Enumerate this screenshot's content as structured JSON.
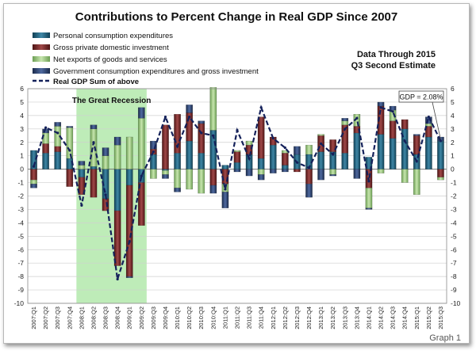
{
  "caption": "Graph 1",
  "note": {
    "line1": "Data Through 2015",
    "line2": "Q3 Second Estimate"
  },
  "gdp_label": "GDP = 2.08%",
  "recession_label": "The Great Recession",
  "colors": {
    "consumption": "#1f5f7a",
    "investment": "#7a2b2b",
    "net_exports": "#94c27a",
    "government": "#2b3f66",
    "gdp_line": "#14215a",
    "recession": "#a8e6a0"
  },
  "chart_data": {
    "type": "bar",
    "title": "Contributions to Percent Change in Real GDP Since 2007",
    "ylim": [
      -10,
      6
    ],
    "grid": true,
    "legend_position": "top-left",
    "recession_range": [
      "2008:Q1",
      "2009:Q2"
    ],
    "categories": [
      "2007:Q1",
      "2007:Q2",
      "2007:Q3",
      "2007:Q4",
      "2008:Q1",
      "2008:Q2",
      "2008:Q3",
      "2008:Q4",
      "2009:Q1",
      "2009:Q2",
      "2009:Q3",
      "2009:Q4",
      "2010:Q1",
      "2010:Q2",
      "2010:Q3",
      "2010:Q4",
      "2011:Q1",
      "2011:Q2",
      "2011:Q3",
      "2011:Q4",
      "2012:Q1",
      "2012:Q2",
      "2012:Q3",
      "2012:Q4",
      "2013:Q1",
      "2013:Q2",
      "2013:Q3",
      "2013:Q4",
      "2014:Q1",
      "2014:Q2",
      "2014:Q3",
      "2014:Q4",
      "2015:Q1",
      "2015:Q2",
      "2015:Q3"
    ],
    "yticks": [
      -10,
      -9,
      -8,
      -7,
      -6,
      -5,
      -4,
      -3,
      -2,
      -1,
      0,
      1,
      2,
      3,
      4,
      5,
      6
    ],
    "series": [
      {
        "name": "Personal consumption expenditures",
        "values": [
          1.4,
          1.2,
          1.3,
          0.8,
          -0.6,
          0.2,
          -2.2,
          -3.1,
          -1.2,
          -1.0,
          1.1,
          -0.1,
          1.2,
          2.1,
          1.2,
          2.9,
          0.3,
          0.5,
          1.1,
          0.8,
          1.8,
          0.3,
          1.1,
          1.1,
          1.3,
          1.3,
          1.2,
          2.7,
          0.9,
          2.6,
          2.3,
          3.0,
          1.1,
          2.4,
          2.1
        ]
      },
      {
        "name": "Gross private domestic investment",
        "values": [
          -0.8,
          0.7,
          0.4,
          -1.3,
          -1.3,
          -2.1,
          -0.9,
          -4.1,
          -6.8,
          -3.2,
          0.4,
          3.3,
          2.9,
          2.1,
          2.2,
          -1.2,
          -1.1,
          0.8,
          0.7,
          3.1,
          0.6,
          0.9,
          -0.2,
          -1.1,
          1.2,
          0.9,
          2.1,
          0.5,
          -1.4,
          2.1,
          1.3,
          0.7,
          1.4,
          0.8,
          -0.6
        ]
      },
      {
        "name": "Net exports of goods and services",
        "values": [
          -0.3,
          0.8,
          1.5,
          2.3,
          0.3,
          2.8,
          1.0,
          1.8,
          2.4,
          3.8,
          -0.7,
          -0.3,
          -1.4,
          -1.5,
          -1.8,
          3.2,
          -0.6,
          0.1,
          0.3,
          -0.4,
          0.0,
          0.2,
          0.0,
          0.7,
          0.1,
          -0.4,
          0.3,
          0.9,
          -1.5,
          -0.3,
          0.8,
          -1.0,
          -1.9,
          0.2,
          -0.2
        ]
      },
      {
        "name": "Government consumption expenditures and gross investment",
        "values": [
          -0.3,
          0.3,
          0.3,
          0.1,
          0.3,
          0.3,
          0.6,
          0.6,
          -0.1,
          0.8,
          0.6,
          -0.3,
          -0.3,
          0.6,
          0.2,
          -0.6,
          -1.2,
          -0.2,
          -0.5,
          -0.4,
          -0.3,
          -0.2,
          0.6,
          -1.0,
          -0.8,
          -0.1,
          0.2,
          -0.7,
          -0.1,
          0.3,
          0.3,
          0.0,
          0.1,
          0.5,
          0.3
        ]
      },
      {
        "name": "Real GDP Sum of above",
        "values": [
          0.2,
          3.1,
          2.7,
          1.4,
          -2.7,
          2.0,
          -1.9,
          -8.2,
          -5.4,
          -0.5,
          1.3,
          3.9,
          1.7,
          3.9,
          2.7,
          2.5,
          -1.5,
          2.9,
          0.8,
          4.6,
          2.3,
          1.6,
          0.5,
          0.1,
          1.9,
          1.1,
          3.0,
          3.8,
          -0.9,
          4.6,
          4.3,
          2.1,
          0.6,
          3.9,
          2.1
        ]
      }
    ]
  }
}
